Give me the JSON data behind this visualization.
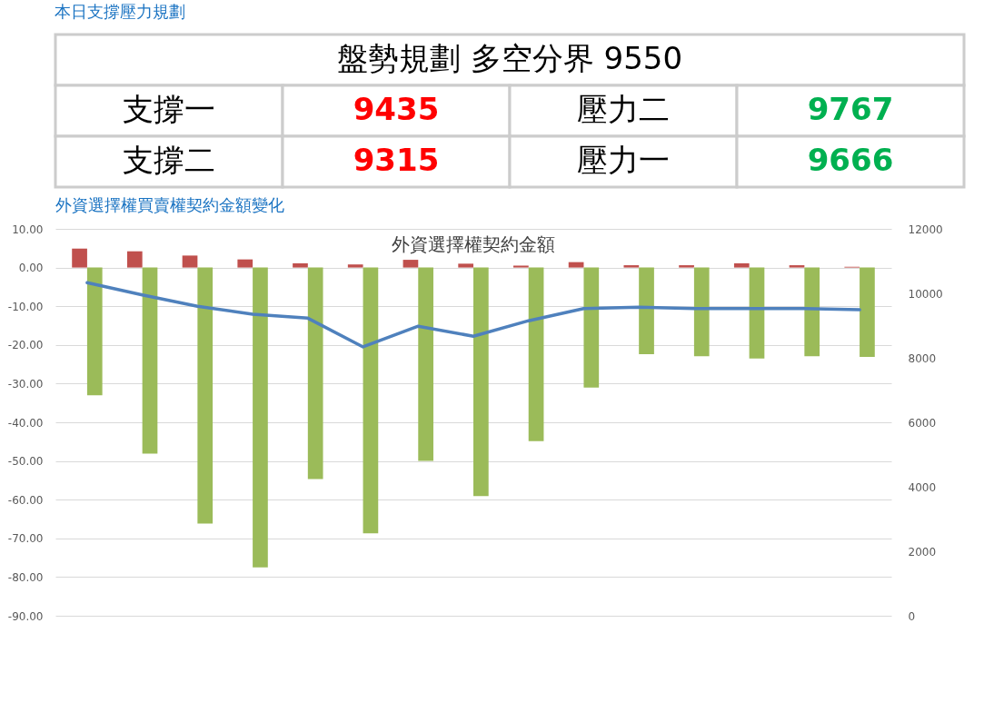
{
  "chart_data": [
    {
      "type": "other",
      "title": "本日支撐壓力規劃",
      "annotations": [
        "盤勢規劃 多空分界 9550",
        "支撐一",
        "9435",
        "壓力二",
        "9767",
        "支撐二",
        "9315",
        "壓力一",
        "9666"
      ]
    },
    {
      "type": "bar",
      "title": "外資選擇權契約金額",
      "annotations": [
        "外資選擇權買賣權契約金額變化"
      ],
      "categories": [
        null,
        null,
        null,
        null,
        null,
        null,
        null,
        null,
        null,
        null,
        null,
        null,
        null,
        null,
        null
      ],
      "series": [
        {
          "color": "#c0504d",
          "values": [
            4.9,
            4.2,
            3.1,
            2.1,
            1.1,
            0.8,
            2.0,
            1.0,
            0.5,
            1.4,
            0.6,
            0.6,
            1.1,
            0.6,
            0.2
          ]
        },
        {
          "color": "#9bbb59",
          "values": [
            -33.0,
            -48.1,
            -66.2,
            -77.5,
            -54.7,
            -68.7,
            -50.0,
            -59.1,
            -44.9,
            -31.0,
            -22.4,
            -22.9,
            -23.5,
            -22.9,
            -23.1
          ]
        },
        {
          "type": "line",
          "axis": "y2",
          "color": "#4f81bd",
          "values": [
            10330,
            9950,
            9600,
            9350,
            9230,
            8340,
            8980,
            8670,
            9150,
            9530,
            9570,
            9530,
            9530,
            9530,
            9490
          ]
        }
      ],
      "ylim": [
        -90,
        10
      ],
      "yticks": [
        {
          "value": -90,
          "label": "-90.00"
        },
        {
          "value": -80,
          "label": "-80.00"
        },
        {
          "value": -70,
          "label": "-70.00"
        },
        {
          "value": -60,
          "label": "-60.00"
        },
        {
          "value": -50,
          "label": "-50.00"
        },
        {
          "value": -40,
          "label": "-40.00"
        },
        {
          "value": -30,
          "label": "-30.00"
        },
        {
          "value": -20,
          "label": "-20.00"
        },
        {
          "value": -10,
          "label": "-10.00"
        },
        {
          "value": 0,
          "label": "0.00"
        },
        {
          "value": 10,
          "label": "10.00"
        }
      ],
      "y2lim": [
        0,
        12000
      ],
      "y2ticks": [
        0,
        2000,
        4000,
        6000,
        8000,
        10000,
        12000
      ],
      "grid": "y"
    }
  ]
}
